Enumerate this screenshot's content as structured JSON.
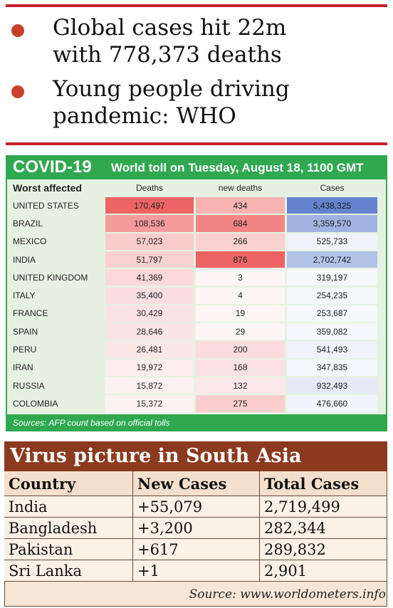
{
  "bullets": [
    {
      "lines": [
        "Global cases hit 22m",
        "with 778,373 deaths"
      ]
    },
    {
      "lines": [
        "Young people driving",
        "pandemic: WHO"
      ]
    }
  ],
  "covid_table": {
    "title": "COVID-19",
    "subtitle": "World toll on Tuesday, August 18, 1100 GMT",
    "columns": [
      "Worst affected",
      "Deaths",
      "new deaths",
      "Cases"
    ],
    "rows": [
      [
        "UNITED STATES",
        "170,497",
        "434",
        "5,438,325"
      ],
      [
        "BRAZIL",
        "108,536",
        "684",
        "3,359,570"
      ],
      [
        "MEXICO",
        "57,023",
        "266",
        "525,733"
      ],
      [
        "INDIA",
        "51,797",
        "876",
        "2,702,742"
      ],
      [
        "UNITED KINGDOM",
        "41,369",
        "3",
        "319,197"
      ],
      [
        "ITALY",
        "35,400",
        "4",
        "254,235"
      ],
      [
        "FRANCE",
        "30,429",
        "19",
        "253,687"
      ],
      [
        "SPAIN",
        "28,646",
        "29",
        "359,082"
      ],
      [
        "PERU",
        "26,481",
        "200",
        "541,493"
      ],
      [
        "IRAN",
        "19,972",
        "168",
        "347,835"
      ],
      [
        "RUSSIA",
        "15,872",
        "132",
        "932,493"
      ],
      [
        "COLOMBIA",
        "15,372",
        "275",
        "476,660"
      ]
    ],
    "source": "Sources: AFP count based on official tolls"
  },
  "south_asia_table": {
    "title": "Virus picture in South Asia",
    "columns": [
      "Country",
      "New Cases",
      "Total Cases"
    ],
    "rows": [
      [
        "India",
        "+55,079",
        "2,719,499"
      ],
      [
        "Bangladesh",
        "+3,200",
        "282,344"
      ],
      [
        "Pakistan",
        "+617",
        "289,832"
      ],
      [
        "Sri Lanka",
        "+1",
        "2,901"
      ]
    ],
    "source": "Source: www.worldometers.info"
  }
}
